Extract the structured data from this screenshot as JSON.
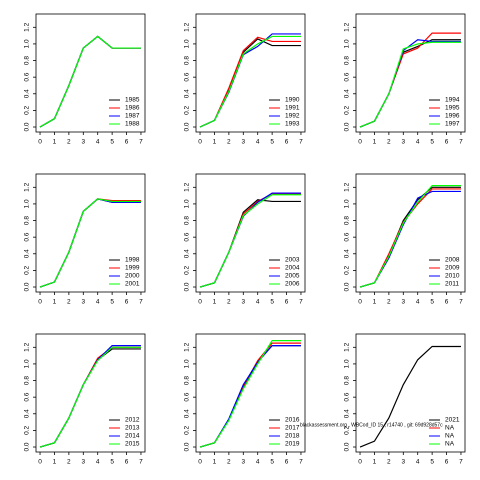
{
  "chart_data": [
    {
      "type": "line",
      "x": [
        0,
        1,
        2,
        3,
        4,
        5,
        6,
        7
      ],
      "xlim": [
        -0.28,
        7.28
      ],
      "ylim": [
        -0.06,
        1.36
      ],
      "xticks": [
        0,
        1,
        2,
        3,
        4,
        5,
        6,
        7
      ],
      "yticks": [
        {
          "value": 0,
          "label": "0.0"
        },
        0.2,
        0.4,
        0.6,
        0.8,
        {
          "value": 1,
          "label": "1.0"
        },
        1.2
      ],
      "legend": "bottom-right",
      "series": [
        {
          "name": "1985",
          "color": "#000000",
          "values": [
            0,
            0.1,
            0.5,
            0.95,
            1.09,
            0.95,
            0.95,
            0.95
          ]
        },
        {
          "name": "1986",
          "color": "#ff0000",
          "values": [
            0,
            0.1,
            0.5,
            0.95,
            1.09,
            0.95,
            0.95,
            0.95
          ]
        },
        {
          "name": "1987",
          "color": "#0000ff",
          "values": [
            0,
            0.1,
            0.5,
            0.95,
            1.09,
            0.95,
            0.95,
            0.95
          ]
        },
        {
          "name": "1988",
          "color": "#00ff00",
          "values": [
            0,
            0.1,
            0.5,
            0.95,
            1.09,
            0.95,
            0.95,
            0.95
          ]
        }
      ]
    },
    {
      "type": "line",
      "x": [
        0,
        1,
        2,
        3,
        4,
        5,
        6,
        7
      ],
      "xlim": [
        -0.28,
        7.28
      ],
      "ylim": [
        -0.06,
        1.36
      ],
      "xticks": [
        0,
        1,
        2,
        3,
        4,
        5,
        6,
        7
      ],
      "yticks": [
        {
          "value": 0,
          "label": "0.0"
        },
        0.2,
        0.4,
        0.6,
        0.8,
        {
          "value": 1,
          "label": "1.0"
        },
        1.2
      ],
      "legend": "bottom-right",
      "series": [
        {
          "name": "1990",
          "color": "#000000",
          "values": [
            0,
            0.08,
            0.45,
            0.9,
            1.06,
            0.98,
            0.98,
            0.98
          ]
        },
        {
          "name": "1991",
          "color": "#ff0000",
          "values": [
            0,
            0.08,
            0.47,
            0.92,
            1.08,
            1.03,
            1.03,
            1.03
          ]
        },
        {
          "name": "1992",
          "color": "#0000ff",
          "values": [
            0,
            0.08,
            0.42,
            0.87,
            0.97,
            1.12,
            1.12,
            1.12
          ]
        },
        {
          "name": "1993",
          "color": "#00ff00",
          "values": [
            0,
            0.08,
            0.43,
            0.88,
            1.0,
            1.09,
            1.09,
            1.09
          ]
        }
      ]
    },
    {
      "type": "line",
      "x": [
        0,
        1,
        2,
        3,
        4,
        5,
        6,
        7
      ],
      "xlim": [
        -0.28,
        7.28
      ],
      "ylim": [
        -0.06,
        1.36
      ],
      "xticks": [
        0,
        1,
        2,
        3,
        4,
        5,
        6,
        7
      ],
      "yticks": [
        {
          "value": 0,
          "label": "0.0"
        },
        0.2,
        0.4,
        0.6,
        0.8,
        {
          "value": 1,
          "label": "1.0"
        },
        1.2
      ],
      "legend": "bottom-right",
      "series": [
        {
          "name": "1994",
          "color": "#000000",
          "values": [
            0,
            0.07,
            0.4,
            0.9,
            0.97,
            1.05,
            1.05,
            1.05
          ]
        },
        {
          "name": "1995",
          "color": "#ff0000",
          "values": [
            0,
            0.07,
            0.4,
            0.88,
            0.95,
            1.13,
            1.13,
            1.13
          ]
        },
        {
          "name": "1996",
          "color": "#0000ff",
          "values": [
            0,
            0.07,
            0.4,
            0.92,
            1.05,
            1.03,
            1.03,
            1.03
          ]
        },
        {
          "name": "1997",
          "color": "#00ff00",
          "values": [
            0,
            0.07,
            0.4,
            0.94,
            1.0,
            1.02,
            1.02,
            1.02
          ]
        }
      ]
    },
    {
      "type": "line",
      "x": [
        0,
        1,
        2,
        3,
        4,
        5,
        6,
        7
      ],
      "xlim": [
        -0.28,
        7.28
      ],
      "ylim": [
        -0.06,
        1.36
      ],
      "xticks": [
        0,
        1,
        2,
        3,
        4,
        5,
        6,
        7
      ],
      "yticks": [
        {
          "value": 0,
          "label": "0.0"
        },
        0.2,
        0.4,
        0.6,
        0.8,
        {
          "value": 1,
          "label": "1.0"
        },
        1.2
      ],
      "legend": "bottom-right",
      "series": [
        {
          "name": "1998",
          "color": "#000000",
          "values": [
            0,
            0.06,
            0.42,
            0.91,
            1.06,
            1.02,
            1.02,
            1.02
          ]
        },
        {
          "name": "1999",
          "color": "#ff0000",
          "values": [
            0,
            0.06,
            0.42,
            0.91,
            1.06,
            1.04,
            1.04,
            1.04
          ]
        },
        {
          "name": "2000",
          "color": "#0000ff",
          "values": [
            0,
            0.06,
            0.42,
            0.91,
            1.06,
            1.02,
            1.02,
            1.02
          ]
        },
        {
          "name": "2001",
          "color": "#00ff00",
          "values": [
            0,
            0.06,
            0.42,
            0.91,
            1.06,
            1.03,
            1.03,
            1.03
          ]
        }
      ]
    },
    {
      "type": "line",
      "x": [
        0,
        1,
        2,
        3,
        4,
        5,
        6,
        7
      ],
      "xlim": [
        -0.28,
        7.28
      ],
      "ylim": [
        -0.06,
        1.36
      ],
      "xticks": [
        0,
        1,
        2,
        3,
        4,
        5,
        6,
        7
      ],
      "yticks": [
        {
          "value": 0,
          "label": "0.0"
        },
        0.2,
        0.4,
        0.6,
        0.8,
        {
          "value": 1,
          "label": "1.0"
        },
        1.2
      ],
      "legend": "bottom-right",
      "series": [
        {
          "name": "2003",
          "color": "#000000",
          "values": [
            0,
            0.05,
            0.42,
            0.9,
            1.05,
            1.03,
            1.03,
            1.03
          ]
        },
        {
          "name": "2004",
          "color": "#ff0000",
          "values": [
            0,
            0.05,
            0.42,
            0.88,
            1.03,
            1.12,
            1.12,
            1.12
          ]
        },
        {
          "name": "2005",
          "color": "#0000ff",
          "values": [
            0,
            0.05,
            0.42,
            0.85,
            1.02,
            1.13,
            1.13,
            1.13
          ]
        },
        {
          "name": "2006",
          "color": "#00ff00",
          "values": [
            0,
            0.05,
            0.42,
            0.86,
            1.0,
            1.11,
            1.11,
            1.11
          ]
        }
      ]
    },
    {
      "type": "line",
      "x": [
        0,
        1,
        2,
        3,
        4,
        5,
        6,
        7
      ],
      "xlim": [
        -0.28,
        7.28
      ],
      "ylim": [
        -0.06,
        1.36
      ],
      "xticks": [
        0,
        1,
        2,
        3,
        4,
        5,
        6,
        7
      ],
      "yticks": [
        {
          "value": 0,
          "label": "0.0"
        },
        0.2,
        0.4,
        0.6,
        0.8,
        {
          "value": 1,
          "label": "1.0"
        },
        1.2
      ],
      "legend": "bottom-right",
      "series": [
        {
          "name": "2008",
          "color": "#000000",
          "values": [
            0,
            0.05,
            0.38,
            0.8,
            1.05,
            1.2,
            1.2,
            1.2
          ]
        },
        {
          "name": "2009",
          "color": "#ff0000",
          "values": [
            0,
            0.05,
            0.4,
            0.78,
            1.0,
            1.18,
            1.18,
            1.18
          ]
        },
        {
          "name": "2010",
          "color": "#0000ff",
          "values": [
            0,
            0.05,
            0.35,
            0.75,
            1.07,
            1.15,
            1.15,
            1.15
          ]
        },
        {
          "name": "2011",
          "color": "#00ff00",
          "values": [
            0,
            0.05,
            0.37,
            0.77,
            1.02,
            1.22,
            1.22,
            1.22
          ]
        }
      ]
    },
    {
      "type": "line",
      "x": [
        0,
        1,
        2,
        3,
        4,
        5,
        6,
        7
      ],
      "xlim": [
        -0.28,
        7.28
      ],
      "ylim": [
        -0.06,
        1.36
      ],
      "xticks": [
        0,
        1,
        2,
        3,
        4,
        5,
        6,
        7
      ],
      "yticks": [
        {
          "value": 0,
          "label": "0.0"
        },
        0.2,
        0.4,
        0.6,
        0.8,
        {
          "value": 1,
          "label": "1.0"
        },
        1.2
      ],
      "legend": "bottom-right",
      "series": [
        {
          "name": "2012",
          "color": "#000000",
          "values": [
            0,
            0.05,
            0.35,
            0.75,
            1.05,
            1.18,
            1.18,
            1.18
          ]
        },
        {
          "name": "2013",
          "color": "#ff0000",
          "values": [
            0,
            0.05,
            0.35,
            0.75,
            1.07,
            1.2,
            1.2,
            1.2
          ]
        },
        {
          "name": "2014",
          "color": "#0000ff",
          "values": [
            0,
            0.05,
            0.35,
            0.75,
            1.05,
            1.22,
            1.22,
            1.22
          ]
        },
        {
          "name": "2015",
          "color": "#00ff00",
          "values": [
            0,
            0.05,
            0.35,
            0.75,
            1.04,
            1.2,
            1.2,
            1.2
          ]
        }
      ]
    },
    {
      "type": "line",
      "x": [
        0,
        1,
        2,
        3,
        4,
        5,
        6,
        7
      ],
      "xlim": [
        -0.28,
        7.28
      ],
      "ylim": [
        -0.06,
        1.36
      ],
      "xticks": [
        0,
        1,
        2,
        3,
        4,
        5,
        6,
        7
      ],
      "yticks": [
        {
          "value": 0,
          "label": "0.0"
        },
        0.2,
        0.4,
        0.6,
        0.8,
        {
          "value": 1,
          "label": "1.0"
        },
        1.2
      ],
      "legend": "bottom-right",
      "series": [
        {
          "name": "2016",
          "color": "#000000",
          "values": [
            0,
            0.05,
            0.33,
            0.72,
            1.03,
            1.22,
            1.22,
            1.22
          ]
        },
        {
          "name": "2017",
          "color": "#ff0000",
          "values": [
            0,
            0.05,
            0.33,
            0.73,
            1.04,
            1.25,
            1.25,
            1.25
          ]
        },
        {
          "name": "2018",
          "color": "#0000ff",
          "values": [
            0,
            0.05,
            0.34,
            0.75,
            1.02,
            1.22,
            1.22,
            1.22
          ]
        },
        {
          "name": "2019",
          "color": "#00ff00",
          "values": [
            0,
            0.05,
            0.32,
            0.7,
            1.0,
            1.28,
            1.28,
            1.28
          ]
        }
      ]
    },
    {
      "type": "line",
      "x": [
        0,
        1,
        2,
        3,
        4,
        5,
        6,
        7
      ],
      "xlim": [
        -0.28,
        7.28
      ],
      "ylim": [
        -0.06,
        1.36
      ],
      "xticks": [
        0,
        1,
        2,
        3,
        4,
        5,
        6,
        7
      ],
      "yticks": [
        {
          "value": 0,
          "label": "0.0"
        },
        0.2,
        0.4,
        0.6,
        0.8,
        {
          "value": 1,
          "label": "1.0"
        },
        1.2
      ],
      "legend": "bottom-right",
      "annotation": "blackassessment.org , WBCod_ID 15 , r14740 , git: 69d928d57c",
      "series": [
        {
          "name": "2021",
          "color": "#000000",
          "values": [
            0,
            0.07,
            0.35,
            0.75,
            1.05,
            1.21,
            1.21,
            1.21
          ]
        },
        {
          "name": "NA",
          "color": "#ff0000",
          "values": [
            null,
            null,
            null,
            null,
            null,
            null,
            null,
            null
          ]
        },
        {
          "name": "NA",
          "color": "#0000ff",
          "values": [
            null,
            null,
            null,
            null,
            null,
            null,
            null,
            null
          ]
        },
        {
          "name": "NA",
          "color": "#00ff00",
          "values": [
            null,
            null,
            null,
            null,
            null,
            null,
            null,
            null
          ]
        }
      ]
    }
  ]
}
